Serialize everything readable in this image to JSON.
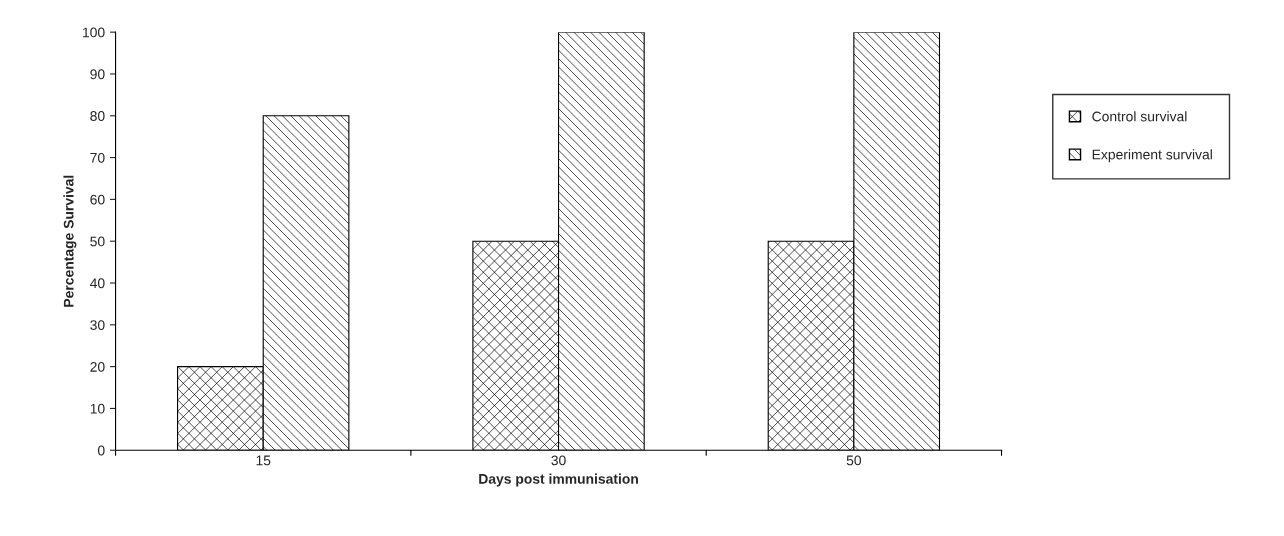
{
  "chart_data": {
    "type": "bar",
    "xlabel": "Days post immunisation",
    "ylabel": "Percentage Survival",
    "categories": [
      "15",
      "30",
      "50"
    ],
    "series": [
      {
        "name": "Control survival",
        "color": "#000000",
        "values": [
          20,
          50,
          50
        ]
      },
      {
        "name": "Experiment survival",
        "color": "#000000",
        "values": [
          80,
          100,
          100
        ]
      }
    ],
    "ylim": [
      0,
      100
    ],
    "yticks": [
      0,
      10,
      20,
      30,
      40,
      50,
      60,
      70,
      80,
      90,
      100
    ],
    "grid": false,
    "legend": "right"
  }
}
